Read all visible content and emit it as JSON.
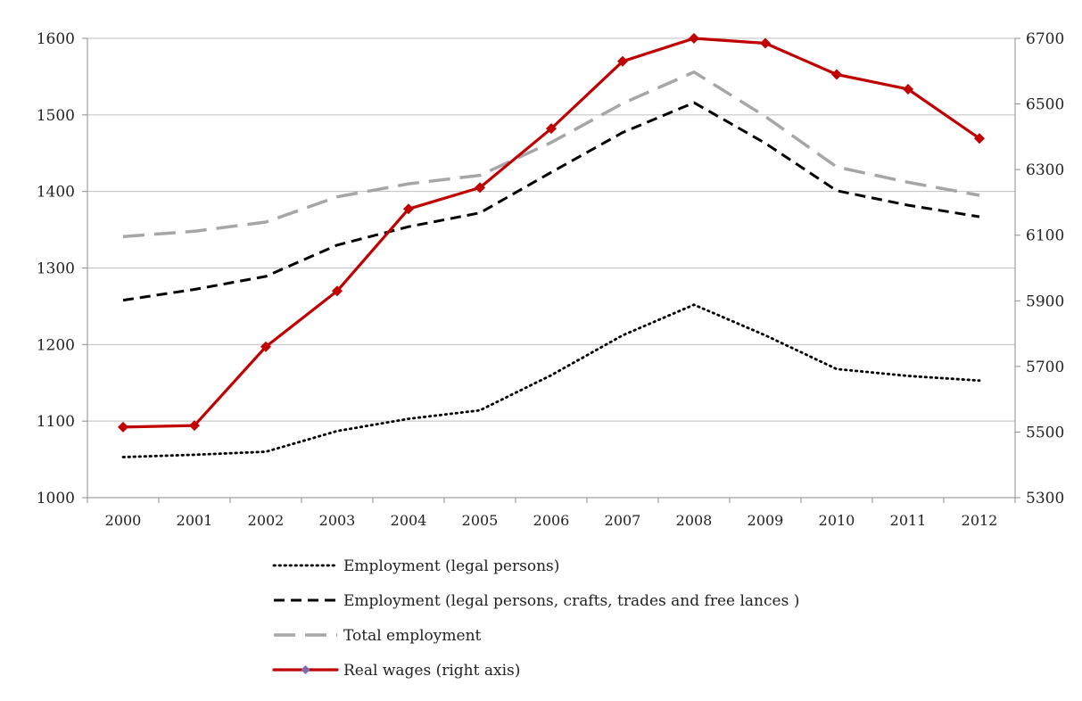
{
  "chart_data": {
    "type": "line",
    "categories": [
      "2000",
      "2001",
      "2002",
      "2003",
      "2004",
      "2005",
      "2006",
      "2007",
      "2008",
      "2009",
      "2010",
      "2011",
      "2012"
    ],
    "y_left": {
      "min": 1000,
      "max": 1600,
      "ticks": [
        1000,
        1100,
        1200,
        1300,
        1400,
        1500,
        1600
      ]
    },
    "y_right": {
      "min": 5300,
      "max": 6700,
      "ticks": [
        5300,
        5500,
        5700,
        5900,
        6100,
        6300,
        6500,
        6700
      ]
    },
    "grid": "horizontal",
    "legend_position": "bottom",
    "series": [
      {
        "name": "Employment (legal persons)",
        "axis": "left",
        "style": "dotted",
        "color": "#000000",
        "values": [
          1053,
          1056,
          1060,
          1087,
          1103,
          1114,
          1160,
          1212,
          1252,
          1212,
          1168,
          1159,
          1153
        ]
      },
      {
        "name": "Employment (legal persons, crafts, trades and free lances )",
        "axis": "left",
        "style": "dashed",
        "color": "#000000",
        "values": [
          1258,
          1272,
          1289,
          1330,
          1354,
          1372,
          1425,
          1477,
          1516,
          1463,
          1401,
          1382,
          1367
        ]
      },
      {
        "name": "Total employment",
        "axis": "left",
        "style": "long-dash",
        "color": "#a6a6a6",
        "values": [
          1341,
          1348,
          1360,
          1393,
          1410,
          1421,
          1464,
          1515,
          1556,
          1498,
          1432,
          1412,
          1395
        ]
      },
      {
        "name": "Real wages (right axis)",
        "axis": "right",
        "style": "solid-markers",
        "color": "#c00000",
        "marker_color": "#c00000",
        "values": [
          5515,
          5520,
          5760,
          5930,
          6180,
          6245,
          6425,
          6630,
          6700,
          6685,
          6590,
          6545,
          6395
        ]
      }
    ]
  }
}
